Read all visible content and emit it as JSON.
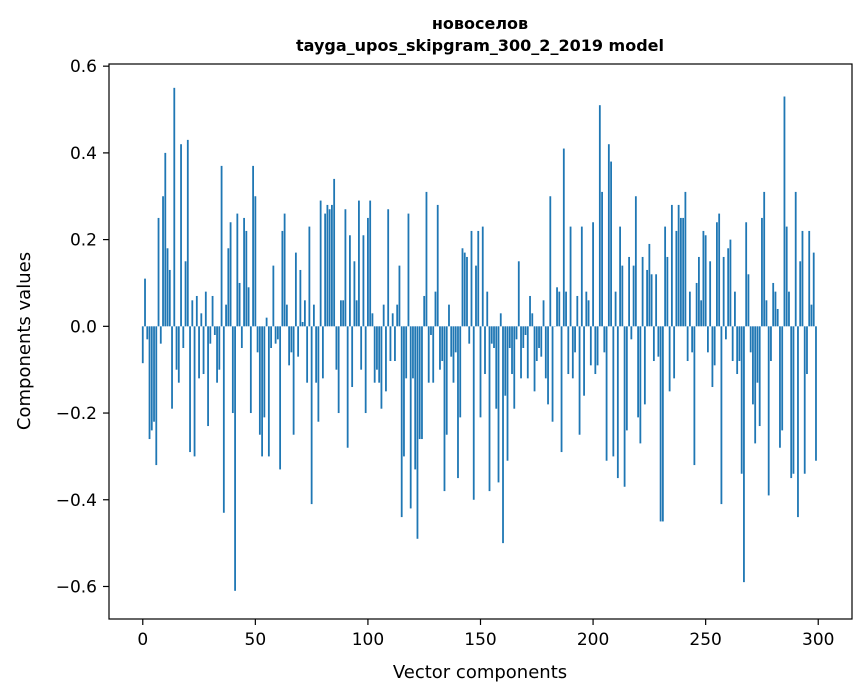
{
  "chart_data": {
    "type": "bar",
    "title": "новоселов",
    "subtitle": "tayga_upos_skipgram_300_2_2019 model",
    "xlabel": "Vector components",
    "ylabel": "Components values",
    "xlim": [
      -15,
      315
    ],
    "ylim": [
      -0.675,
      0.605
    ],
    "xticks": [
      0,
      50,
      100,
      150,
      200,
      250,
      300
    ],
    "xtick_labels": [
      "0",
      "50",
      "100",
      "150",
      "200",
      "250",
      "300"
    ],
    "yticks": [
      -0.6,
      -0.4,
      -0.2,
      0.0,
      0.2,
      0.4,
      0.6
    ],
    "ytick_labels": [
      "−0.6",
      "−0.4",
      "−0.2",
      "0.0",
      "0.2",
      "0.4",
      "0.6"
    ],
    "grid": false,
    "bar_color": "#1f77b4",
    "values": [
      -0.085,
      0.11,
      -0.03,
      -0.26,
      -0.24,
      -0.22,
      -0.32,
      0.25,
      -0.04,
      0.3,
      0.4,
      0.18,
      0.13,
      -0.19,
      0.55,
      -0.1,
      -0.13,
      0.42,
      -0.05,
      0.15,
      0.43,
      -0.29,
      0.06,
      -0.3,
      0.07,
      -0.12,
      0.03,
      -0.11,
      0.08,
      -0.23,
      -0.04,
      0.07,
      -0.02,
      -0.13,
      -0.1,
      0.37,
      -0.43,
      0.05,
      0.18,
      0.24,
      -0.2,
      -0.61,
      0.26,
      0.1,
      -0.05,
      0.25,
      0.22,
      0.09,
      -0.2,
      0.37,
      0.3,
      -0.06,
      -0.25,
      -0.3,
      -0.21,
      0.02,
      -0.3,
      -0.05,
      0.14,
      -0.04,
      -0.03,
      -0.33,
      0.22,
      0.26,
      0.05,
      -0.09,
      -0.06,
      -0.25,
      0.17,
      -0.07,
      0.13,
      0.01,
      0.06,
      -0.13,
      0.23,
      -0.41,
      0.05,
      -0.13,
      -0.22,
      0.29,
      -0.12,
      0.26,
      0.28,
      0.27,
      0.28,
      0.34,
      -0.1,
      -0.2,
      0.06,
      0.06,
      0.27,
      -0.28,
      0.21,
      -0.14,
      0.15,
      0.06,
      0.29,
      -0.1,
      0.21,
      -0.2,
      0.25,
      0.29,
      0.03,
      -0.13,
      -0.1,
      -0.13,
      -0.19,
      0.05,
      -0.15,
      0.27,
      -0.08,
      0.03,
      -0.08,
      0.05,
      0.14,
      -0.44,
      -0.3,
      -0.12,
      0.26,
      -0.42,
      -0.12,
      -0.33,
      -0.49,
      -0.26,
      -0.26,
      0.07,
      0.31,
      -0.13,
      -0.02,
      -0.13,
      0.08,
      0.28,
      -0.1,
      -0.08,
      -0.38,
      -0.25,
      0.05,
      -0.07,
      -0.13,
      -0.06,
      -0.35,
      -0.21,
      0.18,
      0.17,
      0.16,
      -0.04,
      0.22,
      -0.4,
      0.14,
      0.22,
      -0.21,
      0.23,
      -0.11,
      0.08,
      -0.38,
      -0.04,
      -0.05,
      -0.19,
      -0.36,
      0.03,
      -0.5,
      -0.16,
      -0.31,
      -0.05,
      -0.11,
      -0.19,
      -0.03,
      0.15,
      -0.12,
      -0.05,
      -0.02,
      -0.12,
      0.07,
      0.03,
      -0.15,
      -0.08,
      -0.05,
      -0.07,
      0.06,
      -0.12,
      -0.18,
      0.3,
      -0.22,
      0.0,
      0.09,
      0.08,
      -0.29,
      0.41,
      0.08,
      -0.11,
      0.23,
      -0.12,
      -0.06,
      0.07,
      -0.25,
      0.23,
      -0.16,
      0.08,
      0.06,
      -0.09,
      0.24,
      -0.11,
      -0.09,
      0.51,
      0.31,
      -0.06,
      -0.31,
      0.42,
      0.38,
      -0.3,
      0.08,
      -0.35,
      0.23,
      0.14,
      -0.37,
      -0.24,
      0.16,
      -0.03,
      0.14,
      0.3,
      -0.21,
      -0.27,
      0.16,
      -0.18,
      0.13,
      0.19,
      0.12,
      -0.08,
      0.12,
      -0.07,
      -0.45,
      -0.45,
      0.23,
      0.16,
      -0.15,
      0.28,
      -0.12,
      0.22,
      0.28,
      0.25,
      0.25,
      0.31,
      -0.08,
      0.08,
      -0.06,
      -0.32,
      0.1,
      0.16,
      0.06,
      0.22,
      0.21,
      -0.06,
      0.15,
      -0.14,
      -0.09,
      0.24,
      0.26,
      -0.41,
      0.16,
      -0.03,
      0.18,
      0.2,
      -0.08,
      0.08,
      -0.11,
      -0.08,
      -0.34,
      -0.59,
      0.24,
      0.12,
      -0.06,
      -0.18,
      -0.27,
      -0.13,
      -0.23,
      0.25,
      0.31,
      0.06,
      -0.39,
      -0.08,
      0.1,
      0.08,
      0.04,
      -0.28,
      -0.24,
      0.53,
      0.23,
      0.08,
      -0.35,
      -0.34,
      0.31,
      -0.44,
      0.15,
      0.22,
      -0.34,
      -0.11,
      0.22,
      0.05,
      0.17,
      -0.31
    ]
  }
}
